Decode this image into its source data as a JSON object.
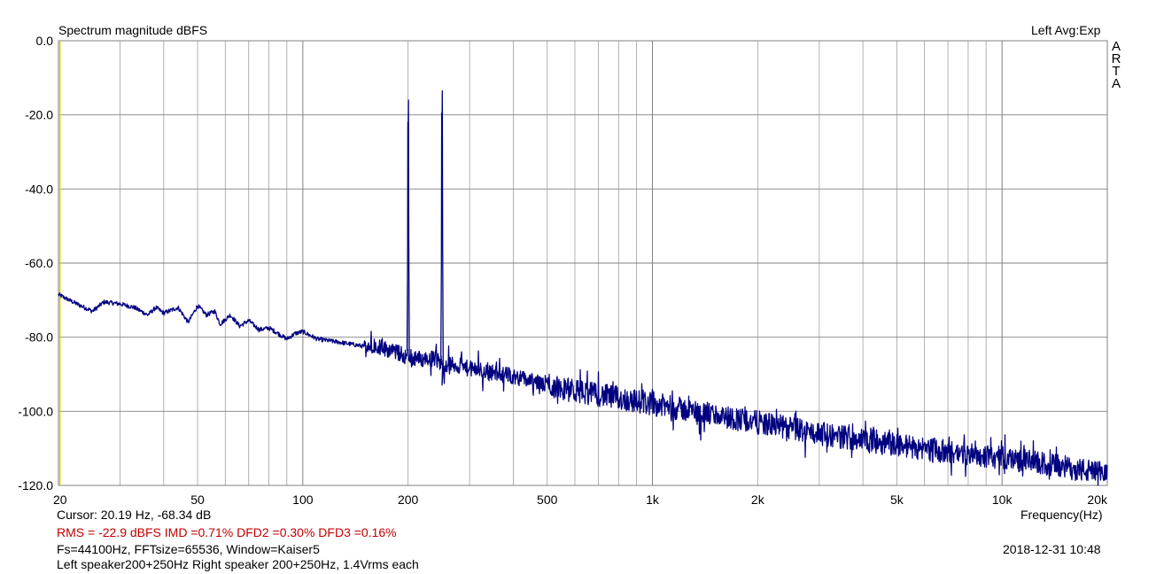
{
  "header": {
    "title": "Spectrum magnitude dBFS",
    "right": "Left  Avg:Exp",
    "brand": [
      "A",
      "R",
      "T",
      "A"
    ]
  },
  "footer": {
    "cursor": "Cursor: 20.19 Hz, -68.34 dB",
    "stats": "RMS =  -22.9 dBFS   IMD =0.71%  DFD2 =0.30%  DFD3 =0.16%",
    "settings": "Fs=44100Hz, FFTsize=65536, Window=Kaiser5",
    "note": "Left speaker200+250Hz Right speaker 200+250Hz, 1.4Vrms each",
    "datetime": "2018-12-31  10:48"
  },
  "colors": {
    "trace": "#000080",
    "grid": "#a0a0a0",
    "cursor": "#e0d000",
    "stats_text": "#c00000"
  },
  "chart_data": {
    "type": "line",
    "title": "Spectrum magnitude dBFS",
    "xlabel": "Frequency(Hz)",
    "ylabel": "",
    "x_scale": "log",
    "xlim": [
      20,
      20000
    ],
    "ylim": [
      -120,
      0
    ],
    "grid": true,
    "yticks": [
      0,
      -20,
      -40,
      -60,
      -80,
      -100,
      -120
    ],
    "ytick_labels": [
      "0.0",
      "-20.0",
      "-40.0",
      "-60.0",
      "-80.0",
      "-100.0",
      "-120.0"
    ],
    "xticks": [
      20,
      50,
      100,
      200,
      500,
      1000,
      2000,
      5000,
      10000,
      20000
    ],
    "xtick_labels": [
      "20",
      "50",
      "100",
      "200",
      "500",
      "1k",
      "2k",
      "5k",
      "10k",
      "20k"
    ],
    "cursor_x": 20.19,
    "series": [
      {
        "baseline": {
          "x": [
            20,
            22,
            25,
            27,
            30,
            33,
            36,
            38,
            40,
            44,
            47,
            50,
            53,
            56,
            58,
            62,
            66,
            70,
            75,
            80,
            85,
            90,
            95,
            100,
            110,
            120,
            130,
            140,
            150,
            160,
            170,
            180,
            190,
            196,
            205,
            210,
            220,
            230,
            240,
            250,
            270,
            300,
            350,
            400,
            500,
            600,
            700,
            800,
            1000,
            1500,
            2000,
            3000,
            5000,
            7000,
            10000,
            15000,
            20000
          ],
          "y": [
            -68.5,
            -70.5,
            -73,
            -70.5,
            -71,
            -72,
            -74,
            -72,
            -73.5,
            -72,
            -76,
            -71.5,
            -74,
            -73,
            -76.5,
            -74,
            -77,
            -75.5,
            -78,
            -77.5,
            -79,
            -80.5,
            -79,
            -78.5,
            -80.5,
            -81,
            -81.5,
            -82,
            -82.5,
            -82,
            -83,
            -83.5,
            -84.5,
            -85,
            -86,
            -85.5,
            -86,
            -85.5,
            -86,
            -87,
            -87.5,
            -88.5,
            -89.5,
            -90.5,
            -93,
            -94.5,
            -95.5,
            -96.5,
            -98,
            -101,
            -103,
            -106,
            -109,
            -111,
            -112.5,
            -115,
            -117
          ]
        },
        "peaks": [
          {
            "x": 200,
            "y": -28
          },
          {
            "x": 250,
            "y": -25.5
          }
        ]
      }
    ]
  }
}
